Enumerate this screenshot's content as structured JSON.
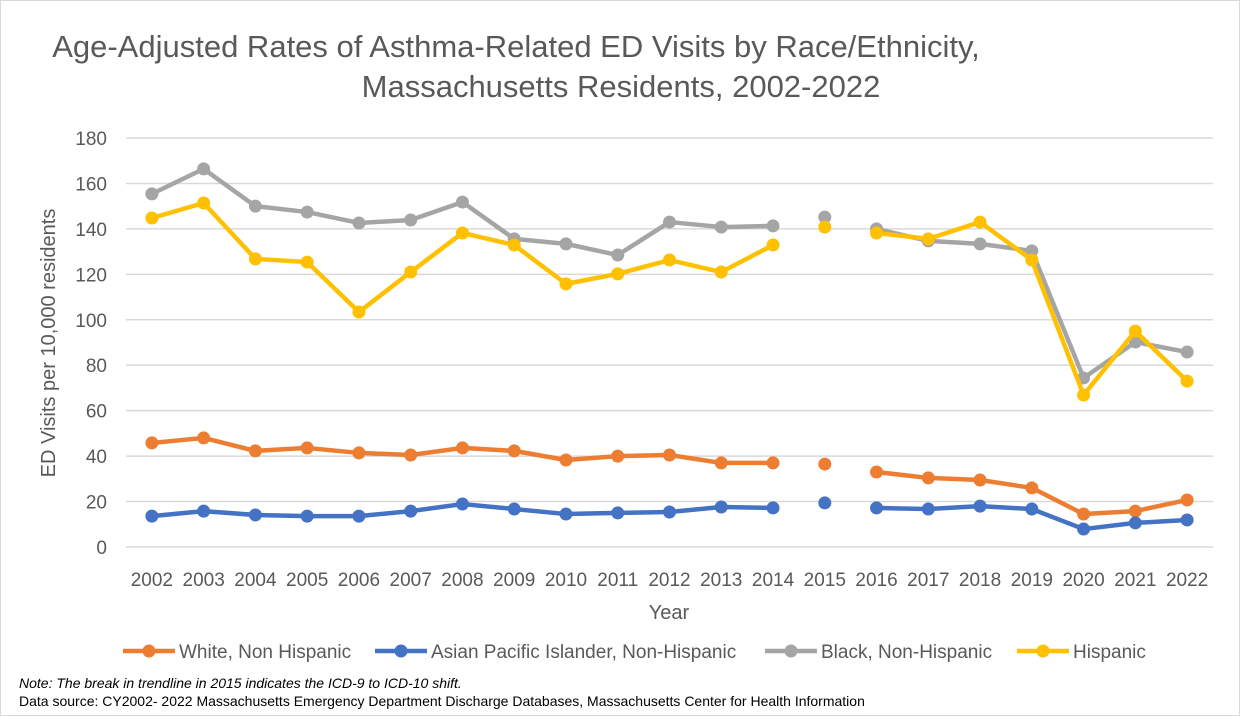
{
  "chart_data": {
    "type": "line",
    "title_lines": [
      "Age-Adjusted Rates of Asthma-Related ED Visits by Race/Ethnicity,",
      "Massachusetts Residents, 2002-2022"
    ],
    "xlabel": "Year",
    "ylabel": "ED Visits per 10,000 residents",
    "ylim": [
      0,
      180
    ],
    "yticks": [
      0,
      20,
      40,
      60,
      80,
      100,
      120,
      140,
      160,
      180
    ],
    "grid": true,
    "legend_position": "bottom",
    "categories": [
      "2002",
      "2003",
      "2004",
      "2005",
      "2006",
      "2007",
      "2008",
      "2009",
      "2010",
      "2011",
      "2012",
      "2013",
      "2014",
      "2015",
      "2016",
      "2017",
      "2018",
      "2019",
      "2020",
      "2021",
      "2022"
    ],
    "break_year": "2015",
    "series": [
      {
        "name": "White, Non Hispanic",
        "color": "#ED7D31",
        "values": [
          45.8,
          48.0,
          42.3,
          43.6,
          41.4,
          40.5,
          43.6,
          42.3,
          38.3,
          40.0,
          40.5,
          37.0,
          37.0,
          36.5,
          33.0,
          30.4,
          29.5,
          26.0,
          14.5,
          15.8,
          20.7
        ]
      },
      {
        "name": "Asian Pacific Islander, Non-Hispanic",
        "color": "#4472C4",
        "values": [
          13.6,
          15.8,
          14.1,
          13.6,
          13.6,
          15.8,
          18.9,
          16.7,
          14.5,
          15.0,
          15.4,
          17.6,
          17.2,
          19.4,
          17.2,
          16.7,
          18.0,
          16.7,
          7.9,
          10.6,
          11.9
        ]
      },
      {
        "name": "Black, Non-Hispanic",
        "color": "#A5A5A5",
        "values": [
          155.4,
          166.4,
          150.0,
          147.4,
          142.6,
          143.9,
          151.8,
          135.6,
          133.4,
          128.5,
          143.0,
          140.8,
          141.3,
          145.2,
          140.0,
          134.7,
          133.4,
          130.3,
          74.4,
          90.2,
          85.8
        ]
      },
      {
        "name": "Hispanic",
        "color": "#FFC000",
        "values": [
          144.8,
          151.4,
          126.8,
          125.4,
          103.4,
          121.0,
          138.2,
          132.9,
          115.8,
          120.2,
          126.3,
          121.0,
          132.9,
          140.8,
          138.2,
          135.6,
          143.0,
          126.3,
          66.9,
          95.0,
          73.0
        ]
      }
    ]
  },
  "notes": {
    "note": "Note: The break in trendline in 2015 indicates the ICD-9 to ICD-10 shift.",
    "source": "Data source: CY2002- 2022 Massachusetts Emergency Department Discharge Databases, Massachusetts Center for Health Information"
  }
}
